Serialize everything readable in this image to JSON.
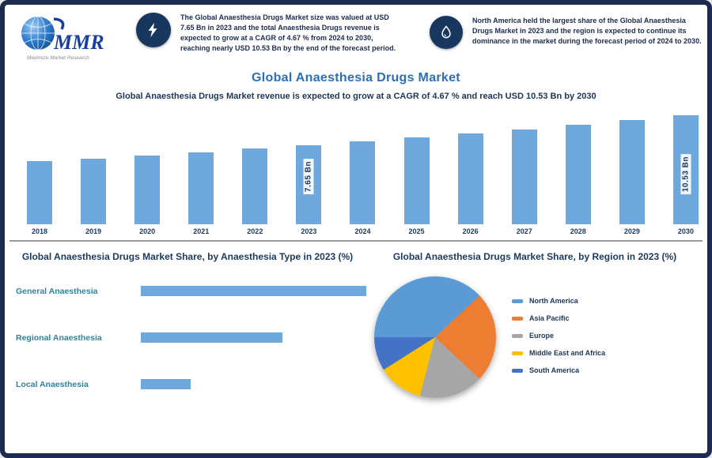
{
  "logo": {
    "text": "MMR",
    "tagline": "Maximize Market Research"
  },
  "callouts": [
    {
      "icon": "lightning-icon",
      "text": "The Global Anaesthesia Drugs Market size was valued at USD 7.65 Bn in 2023 and the total Anaesthesia Drugs revenue is expected to grow at a CAGR of 4.67 % from 2024 to 2030, reaching nearly USD 10.53 Bn by the end of the forecast period."
    },
    {
      "icon": "droplet-icon",
      "text": "North America held the largest share of the Global Anaesthesia Drugs Market in 2023 and the region is expected to continue its dominance in the market during the forecast period of 2024 to 2030."
    }
  ],
  "header": {
    "title": "Global Anaesthesia Drugs Market",
    "subtitle": "Global Anaesthesia Drugs Market revenue is expected to grow at a CAGR of 4.67 % and reach USD 10.53 Bn by 2030"
  },
  "sections": {
    "left_heading": "Global Anaesthesia Drugs Market Share, by Anaesthesia Type in 2023 (%)",
    "right_heading": "Global Anaesthesia Drugs Market Share, by Region in 2023 (%)"
  },
  "chart_data": [
    {
      "type": "bar",
      "title": "Global Anaesthesia Drugs Market Revenue (USD Bn)",
      "categories": [
        "2018",
        "2019",
        "2020",
        "2021",
        "2022",
        "2023",
        "2024",
        "2025",
        "2026",
        "2027",
        "2028",
        "2029",
        "2030"
      ],
      "values": [
        6.09,
        6.37,
        6.67,
        6.98,
        7.31,
        7.65,
        8.01,
        8.38,
        8.77,
        9.18,
        9.61,
        10.06,
        10.53
      ],
      "bar_labels": {
        "5": "7.65 Bn",
        "12": "10.53 Bn"
      },
      "bar_color": "#6fa8dc",
      "ylim": [
        0,
        11
      ],
      "grid": false,
      "legend": false
    },
    {
      "type": "bar_horizontal",
      "title": "Market share by Anaesthesia Type, 2023",
      "categories": [
        "General Anaesthesia",
        "Regional Anaesthesia",
        "Local Anaesthesia"
      ],
      "values": [
        54,
        34,
        12
      ],
      "unit": "%",
      "bar_color": "#6fa8dc",
      "label_color": "#2f849c",
      "xlim": [
        0,
        60
      ],
      "grid": false
    },
    {
      "type": "pie",
      "title": "Market share by Region, 2023 (%)",
      "labels": [
        "North America",
        "Asia Pacific",
        "Europe",
        "Middle East and Africa",
        "South America"
      ],
      "values": [
        38,
        24,
        17,
        12,
        9
      ],
      "colors": [
        "#5b9bd5",
        "#ed7d31",
        "#a6a6a6",
        "#ffc000",
        "#4472c4"
      ],
      "legend_position": "right",
      "start_angle_deg": 270
    }
  ]
}
